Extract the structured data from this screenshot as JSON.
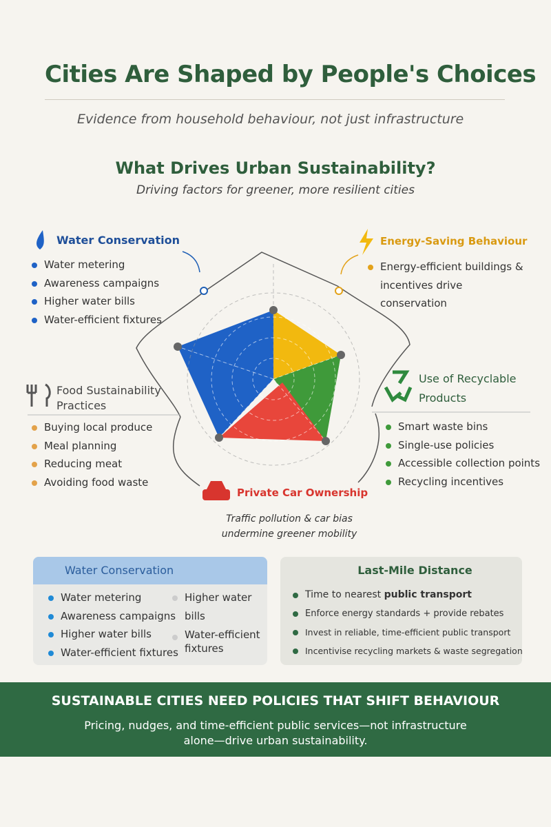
{
  "header": {
    "title": "Cities Are Shaped by People's Choices",
    "subtitle": "Evidence from household behaviour, not just infrastructure"
  },
  "section": {
    "title": "What Drives Urban Sustainability?",
    "subtitle": "Driving factors for greener, more resilient cities"
  },
  "factors": {
    "water": {
      "title": "Water Conservation",
      "items": [
        "Water metering",
        "Awareness campaigns",
        "Higher water bills",
        "Water-efficient fixtures"
      ]
    },
    "energy": {
      "title": "Energy-Saving Behaviour",
      "items": [
        "Energy-efficient buildings & incentives drive conservation"
      ]
    },
    "food": {
      "title": "Food Sustainability Practices",
      "items": [
        "Buying local produce",
        "Meal planning",
        "Reducing meat",
        "Avoiding food waste"
      ]
    },
    "recycling": {
      "title": "Use of Recyclable Products",
      "items": [
        "Smart waste bins",
        "Single-use policies",
        "Accessible collection points",
        "Recycling incentives"
      ]
    },
    "car": {
      "title": "Private Car Ownership",
      "note": "Traffic pollution & car bias undermine greener mobility"
    }
  },
  "panels": {
    "water": {
      "title": "Water Conservation",
      "items": [
        "Water metering",
        "Awareness campaigns",
        "Higher water bills",
        "Water-efficient fixtures"
      ],
      "side_items": [
        "Higher water bills",
        "Water-efficient fixtures"
      ]
    },
    "last_mile": {
      "title": "Last-Mile Distance",
      "first_item": {
        "text": "Time to nearest",
        "bold": "public transport"
      },
      "items": [
        "Enforce energy standards + provide rebates",
        "Invest in reliable, time-efficient public transport",
        "Incentivise recycling markets & waste segregation"
      ]
    }
  },
  "footer": {
    "title": "SUSTAINABLE CITIES NEED POLICIES THAT SHIFT BEHAVIOUR",
    "text": "Pricing, nudges, and time-efficient public services—not infrastructure alone—drive urban sustainability."
  }
}
